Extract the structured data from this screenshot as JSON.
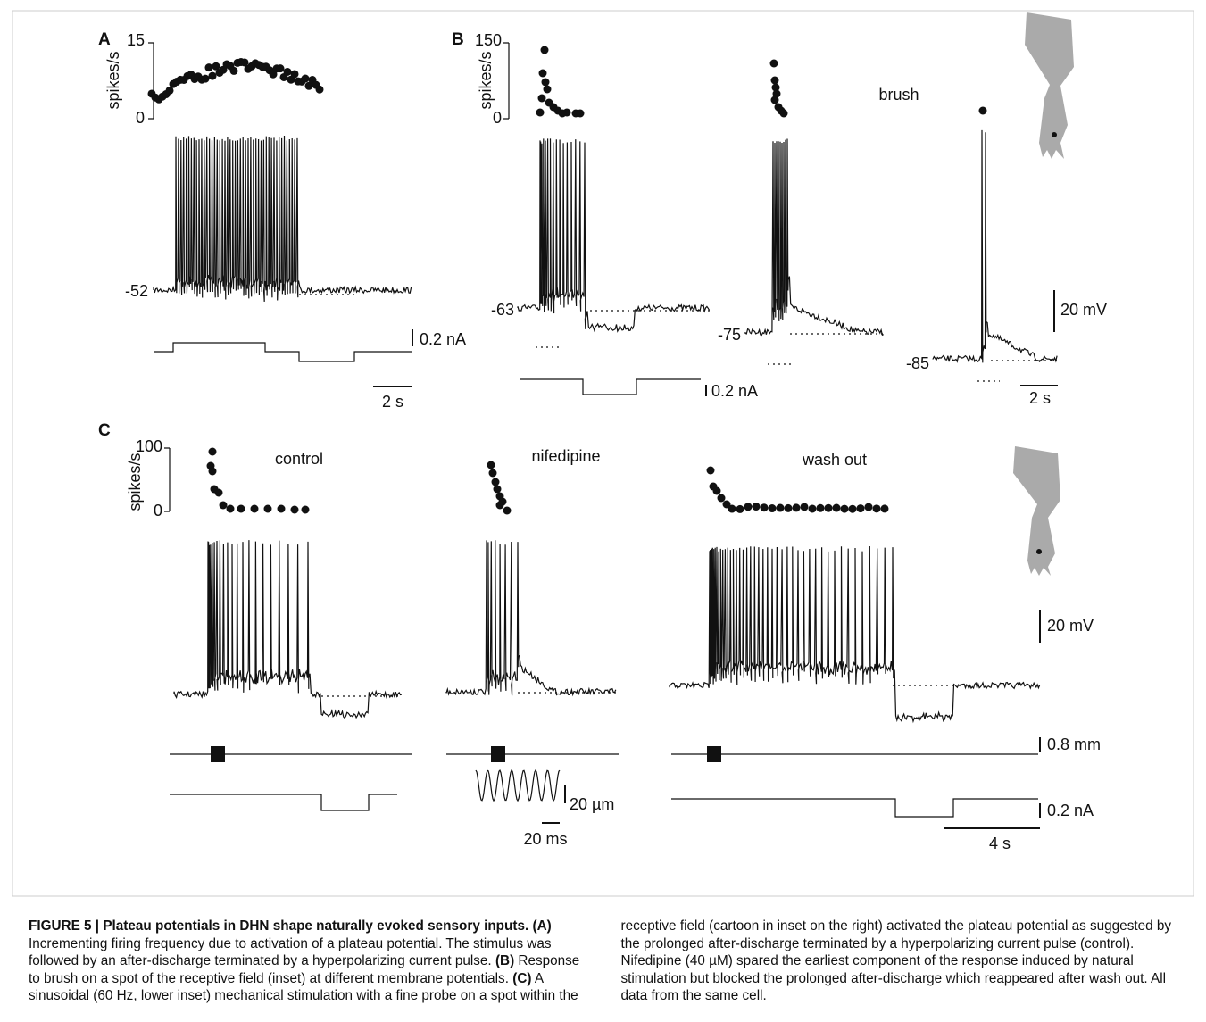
{
  "figure": {
    "panels": [
      {
        "label": "A",
        "y_axis_label": "spikes/s",
        "yticks": [
          "15",
          "0"
        ],
        "potentials": [
          "-52"
        ],
        "current_scale": "0.2 nA",
        "time_scale": "2 s"
      },
      {
        "label": "B",
        "y_axis_label": "spikes/s",
        "yticks": [
          "150",
          "0"
        ],
        "stimulus": "brush",
        "potentials": [
          "-63",
          "-75",
          "-85"
        ],
        "current_scale": "0.2 nA",
        "voltage_scale": "20 mV",
        "time_scale": "2 s"
      },
      {
        "label": "C",
        "y_axis_label": "spikes/s",
        "yticks": [
          "100",
          "0"
        ],
        "conditions": [
          "control",
          "nifedipine",
          "wash out"
        ],
        "voltage_scale": "20 mV",
        "displacement_scale": "0.8 mm",
        "current_scale": "0.2 nA",
        "time_scale": "4 s",
        "inset_amplitude_scale": "20 µm",
        "inset_time_scale": "20 ms"
      }
    ]
  },
  "caption": {
    "title": "FIGURE 5 | Plateau potentials in DHN shape naturally evoked sensory inputs.",
    "parts": [
      {
        "label": "(A)",
        "text": " Incrementing firing frequency due to activation of a plateau potential. The stimulus was followed by an after-discharge terminated by a hyperpolarizing current pulse. "
      },
      {
        "label": "(B)",
        "text": " Response to brush on a spot of the receptive field (inset) at different membrane potentials. "
      },
      {
        "label": "(C)",
        "text": " A sinusoidal (60 Hz, lower inset) mechanical stimulation with a fine probe on a spot within the receptive field (cartoon in inset on the right) activated the plateau potential as suggested by the prolonged after-discharge terminated by a hyperpolarizing current pulse (control). Nifedipine (40 µM) spared the earliest component of the response induced by natural stimulation but blocked the prolonged after-discharge which reappeared after wash out. All data from the same cell."
      }
    ]
  }
}
